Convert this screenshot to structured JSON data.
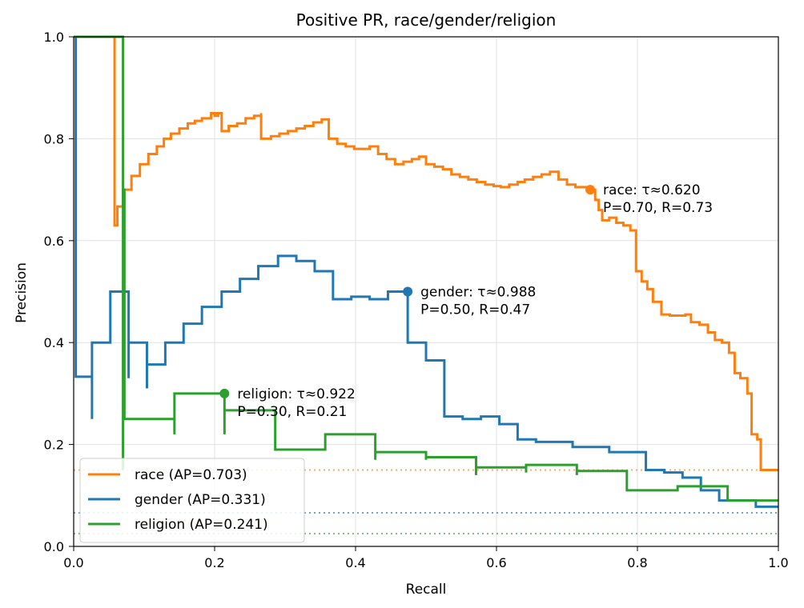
{
  "chart_data": {
    "type": "line",
    "title": "Positive PR, race/gender/religion",
    "xlabel": "Recall",
    "ylabel": "Precision",
    "xlim": [
      0.0,
      1.0
    ],
    "ylim": [
      0.0,
      1.0
    ],
    "xticks": [
      "0.0",
      "0.2",
      "0.4",
      "0.6",
      "0.8",
      "1.0"
    ],
    "yticks": [
      "0.0",
      "0.2",
      "0.4",
      "0.6",
      "0.8",
      "1.0"
    ],
    "grid": true,
    "legend_position": "lower-left",
    "series": [
      {
        "name": "race (AP=0.703)",
        "color": "#ff7f0e",
        "step": true,
        "baseline": 0.15,
        "points": [
          [
            0.058,
            1.0
          ],
          [
            0.058,
            0.63
          ],
          [
            0.062,
            0.667
          ],
          [
            0.07,
            0.7
          ],
          [
            0.082,
            0.727
          ],
          [
            0.094,
            0.75
          ],
          [
            0.106,
            0.77
          ],
          [
            0.118,
            0.785
          ],
          [
            0.128,
            0.8
          ],
          [
            0.138,
            0.81
          ],
          [
            0.15,
            0.82
          ],
          [
            0.162,
            0.83
          ],
          [
            0.172,
            0.835
          ],
          [
            0.182,
            0.84
          ],
          [
            0.195,
            0.85
          ],
          [
            0.205,
            0.845
          ],
          [
            0.2,
            0.85
          ],
          [
            0.21,
            0.85
          ],
          [
            0.21,
            0.815
          ],
          [
            0.22,
            0.825
          ],
          [
            0.232,
            0.83
          ],
          [
            0.244,
            0.84
          ],
          [
            0.256,
            0.845
          ],
          [
            0.266,
            0.85
          ],
          [
            0.266,
            0.8
          ],
          [
            0.28,
            0.805
          ],
          [
            0.292,
            0.81
          ],
          [
            0.304,
            0.815
          ],
          [
            0.316,
            0.82
          ],
          [
            0.328,
            0.825
          ],
          [
            0.34,
            0.832
          ],
          [
            0.352,
            0.838
          ],
          [
            0.362,
            0.8
          ],
          [
            0.374,
            0.79
          ],
          [
            0.386,
            0.785
          ],
          [
            0.398,
            0.78
          ],
          [
            0.41,
            0.78
          ],
          [
            0.42,
            0.785
          ],
          [
            0.432,
            0.77
          ],
          [
            0.444,
            0.76
          ],
          [
            0.456,
            0.75
          ],
          [
            0.468,
            0.755
          ],
          [
            0.48,
            0.76
          ],
          [
            0.49,
            0.765
          ],
          [
            0.5,
            0.75
          ],
          [
            0.512,
            0.745
          ],
          [
            0.524,
            0.74
          ],
          [
            0.536,
            0.73
          ],
          [
            0.548,
            0.725
          ],
          [
            0.56,
            0.72
          ],
          [
            0.572,
            0.715
          ],
          [
            0.584,
            0.71
          ],
          [
            0.596,
            0.707
          ],
          [
            0.606,
            0.705
          ],
          [
            0.618,
            0.71
          ],
          [
            0.63,
            0.715
          ],
          [
            0.64,
            0.72
          ],
          [
            0.652,
            0.725
          ],
          [
            0.664,
            0.73
          ],
          [
            0.676,
            0.735
          ],
          [
            0.688,
            0.72
          ],
          [
            0.7,
            0.71
          ],
          [
            0.712,
            0.705
          ],
          [
            0.724,
            0.705
          ],
          [
            0.732,
            0.7
          ],
          [
            0.74,
            0.68
          ],
          [
            0.745,
            0.66
          ],
          [
            0.75,
            0.64
          ],
          [
            0.76,
            0.645
          ],
          [
            0.77,
            0.635
          ],
          [
            0.78,
            0.63
          ],
          [
            0.79,
            0.62
          ],
          [
            0.798,
            0.54
          ],
          [
            0.806,
            0.52
          ],
          [
            0.814,
            0.505
          ],
          [
            0.822,
            0.48
          ],
          [
            0.834,
            0.455
          ],
          [
            0.846,
            0.453
          ],
          [
            0.858,
            0.453
          ],
          [
            0.868,
            0.455
          ],
          [
            0.876,
            0.44
          ],
          [
            0.888,
            0.435
          ],
          [
            0.9,
            0.42
          ],
          [
            0.91,
            0.405
          ],
          [
            0.92,
            0.4
          ],
          [
            0.93,
            0.38
          ],
          [
            0.938,
            0.34
          ],
          [
            0.946,
            0.33
          ],
          [
            0.956,
            0.3
          ],
          [
            0.962,
            0.22
          ],
          [
            0.97,
            0.21
          ],
          [
            0.975,
            0.15
          ],
          [
            1.0,
            0.15
          ]
        ]
      },
      {
        "name": "gender (AP=0.331)",
        "color": "#1f77b4",
        "step": true,
        "baseline": 0.066,
        "points": [
          [
            0.003,
            1.0
          ],
          [
            0.003,
            0.333
          ],
          [
            0.026,
            0.333
          ],
          [
            0.026,
            0.25
          ],
          [
            0.026,
            0.4
          ],
          [
            0.052,
            0.4
          ],
          [
            0.052,
            0.5
          ],
          [
            0.078,
            0.5
          ],
          [
            0.078,
            0.33
          ],
          [
            0.078,
            0.4
          ],
          [
            0.104,
            0.4
          ],
          [
            0.104,
            0.31
          ],
          [
            0.104,
            0.357
          ],
          [
            0.13,
            0.357
          ],
          [
            0.13,
            0.4
          ],
          [
            0.156,
            0.4
          ],
          [
            0.156,
            0.437
          ],
          [
            0.182,
            0.437
          ],
          [
            0.182,
            0.47
          ],
          [
            0.21,
            0.47
          ],
          [
            0.21,
            0.5
          ],
          [
            0.236,
            0.5
          ],
          [
            0.236,
            0.525
          ],
          [
            0.262,
            0.525
          ],
          [
            0.262,
            0.55
          ],
          [
            0.29,
            0.55
          ],
          [
            0.29,
            0.57
          ],
          [
            0.316,
            0.57
          ],
          [
            0.316,
            0.56
          ],
          [
            0.342,
            0.56
          ],
          [
            0.342,
            0.54
          ],
          [
            0.368,
            0.54
          ],
          [
            0.368,
            0.485
          ],
          [
            0.394,
            0.485
          ],
          [
            0.394,
            0.49
          ],
          [
            0.42,
            0.49
          ],
          [
            0.42,
            0.485
          ],
          [
            0.446,
            0.485
          ],
          [
            0.446,
            0.5
          ],
          [
            0.474,
            0.5
          ],
          [
            0.474,
            0.4
          ],
          [
            0.5,
            0.4
          ],
          [
            0.5,
            0.365
          ],
          [
            0.526,
            0.365
          ],
          [
            0.526,
            0.255
          ],
          [
            0.552,
            0.255
          ],
          [
            0.552,
            0.25
          ],
          [
            0.578,
            0.25
          ],
          [
            0.578,
            0.255
          ],
          [
            0.604,
            0.255
          ],
          [
            0.604,
            0.24
          ],
          [
            0.63,
            0.24
          ],
          [
            0.63,
            0.21
          ],
          [
            0.656,
            0.21
          ],
          [
            0.656,
            0.205
          ],
          [
            0.682,
            0.205
          ],
          [
            0.682,
            0.205
          ],
          [
            0.708,
            0.205
          ],
          [
            0.708,
            0.195
          ],
          [
            0.734,
            0.195
          ],
          [
            0.734,
            0.195
          ],
          [
            0.76,
            0.195
          ],
          [
            0.76,
            0.185
          ],
          [
            0.786,
            0.185
          ],
          [
            0.786,
            0.185
          ],
          [
            0.812,
            0.185
          ],
          [
            0.812,
            0.15
          ],
          [
            0.838,
            0.15
          ],
          [
            0.838,
            0.145
          ],
          [
            0.864,
            0.145
          ],
          [
            0.864,
            0.135
          ],
          [
            0.89,
            0.135
          ],
          [
            0.89,
            0.11
          ],
          [
            0.916,
            0.11
          ],
          [
            0.916,
            0.09
          ],
          [
            0.942,
            0.09
          ],
          [
            0.942,
            0.09
          ],
          [
            0.968,
            0.09
          ],
          [
            0.968,
            0.078
          ],
          [
            1.0,
            0.078
          ]
        ]
      },
      {
        "name": "religion (AP=0.241)",
        "color": "#2ca02c",
        "step": true,
        "baseline": 0.025,
        "points": [
          [
            0.0,
            1.0
          ],
          [
            0.07,
            1.0
          ],
          [
            0.07,
            0.15
          ],
          [
            0.07,
            0.7
          ],
          [
            0.072,
            0.7
          ],
          [
            0.072,
            0.25
          ],
          [
            0.143,
            0.25
          ],
          [
            0.143,
            0.22
          ],
          [
            0.143,
            0.3
          ],
          [
            0.214,
            0.3
          ],
          [
            0.214,
            0.22
          ],
          [
            0.214,
            0.267
          ],
          [
            0.286,
            0.267
          ],
          [
            0.286,
            0.19
          ],
          [
            0.357,
            0.19
          ],
          [
            0.357,
            0.22
          ],
          [
            0.428,
            0.22
          ],
          [
            0.428,
            0.17
          ],
          [
            0.428,
            0.185
          ],
          [
            0.5,
            0.185
          ],
          [
            0.5,
            0.17
          ],
          [
            0.5,
            0.175
          ],
          [
            0.571,
            0.175
          ],
          [
            0.571,
            0.14
          ],
          [
            0.571,
            0.155
          ],
          [
            0.642,
            0.155
          ],
          [
            0.642,
            0.145
          ],
          [
            0.642,
            0.16
          ],
          [
            0.714,
            0.16
          ],
          [
            0.714,
            0.14
          ],
          [
            0.714,
            0.148
          ],
          [
            0.785,
            0.148
          ],
          [
            0.785,
            0.11
          ],
          [
            0.857,
            0.11
          ],
          [
            0.857,
            0.118
          ],
          [
            0.928,
            0.118
          ],
          [
            0.928,
            0.09
          ],
          [
            1.0,
            0.09
          ]
        ]
      }
    ],
    "markers": [
      {
        "series": "race",
        "x": 0.733,
        "y": 0.7,
        "label_line1": "race: τ≈0.620",
        "label_line2": "P=0.70, R=0.73"
      },
      {
        "series": "gender",
        "x": 0.474,
        "y": 0.5,
        "label_line1": "gender: τ≈0.988",
        "label_line2": "P=0.50, R=0.47"
      },
      {
        "series": "religion",
        "x": 0.214,
        "y": 0.3,
        "label_line1": "religion: τ≈0.922",
        "label_line2": "P=0.30, R=0.21"
      }
    ]
  }
}
